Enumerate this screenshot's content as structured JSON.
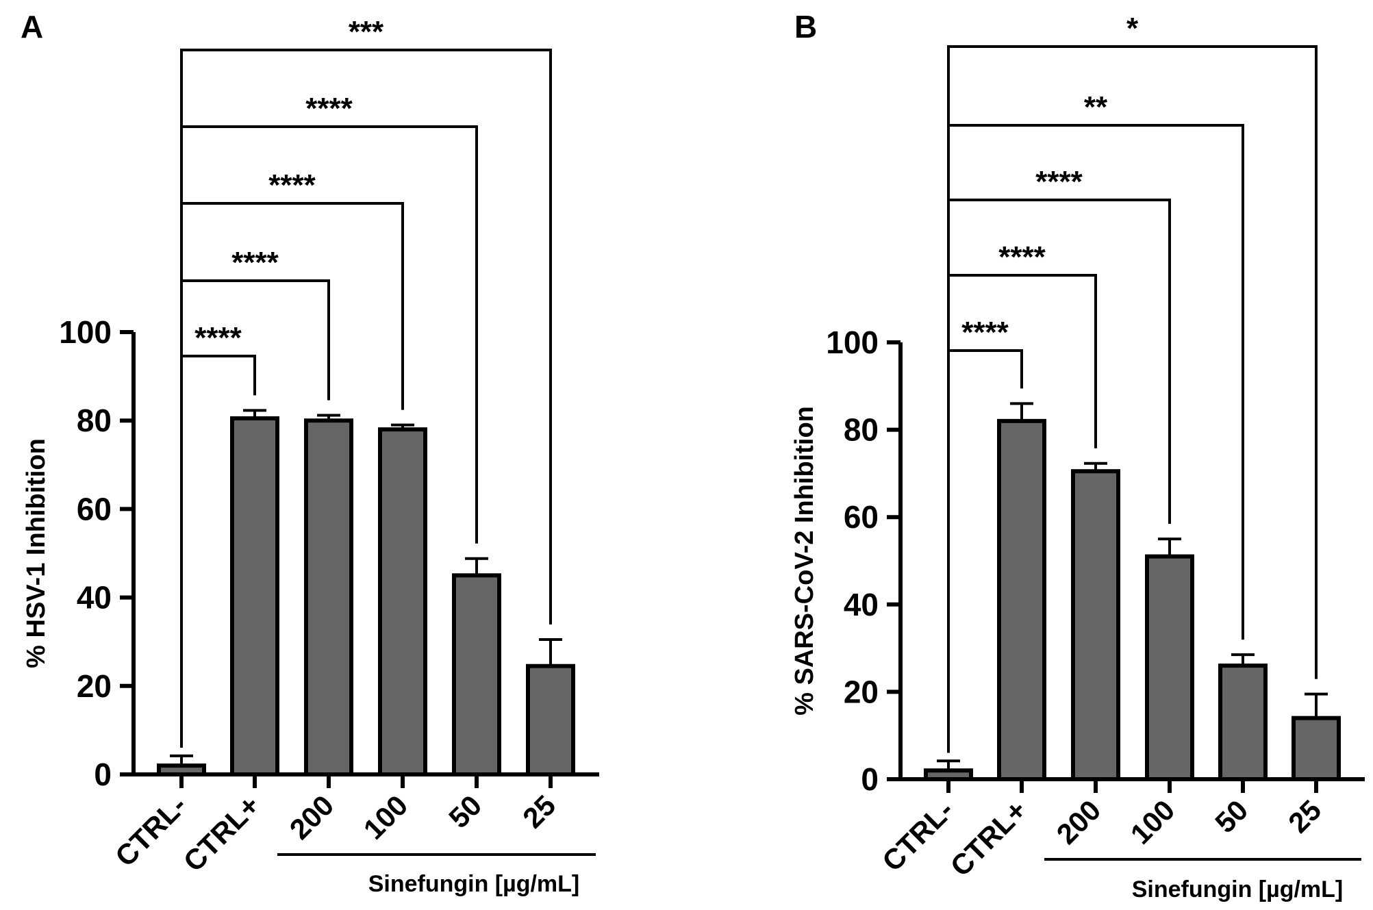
{
  "chart_data": [
    {
      "type": "bar",
      "panel_label": "A",
      "categories": [
        "CTRL-",
        "CTRL+",
        "200",
        "100",
        "50",
        "25"
      ],
      "values": [
        2,
        80.5,
        80,
        78,
        45,
        24.5
      ],
      "errors": [
        2.2,
        1.8,
        1.2,
        1.0,
        3.8,
        6.0
      ],
      "ylabel": "% HSV-1 Inhibition",
      "xlabel": "Sinefungin [µg/mL]",
      "xlabel_group_start": 2,
      "ylim": [
        0,
        100
      ],
      "yticks": [
        0,
        20,
        40,
        60,
        80,
        100
      ],
      "bar_color": "#666666",
      "significance": [
        {
          "from": 0,
          "to": 1,
          "label": "****"
        },
        {
          "from": 0,
          "to": 2,
          "label": "****"
        },
        {
          "from": 0,
          "to": 3,
          "label": "****"
        },
        {
          "from": 0,
          "to": 4,
          "label": "****"
        },
        {
          "from": 0,
          "to": 5,
          "label": "***"
        }
      ]
    },
    {
      "type": "bar",
      "panel_label": "B",
      "categories": [
        "CTRL-",
        "CTRL+",
        "200",
        "100",
        "50",
        "25"
      ],
      "values": [
        2,
        82,
        70.5,
        51,
        26,
        14
      ],
      "errors": [
        2.2,
        4.0,
        1.8,
        4.0,
        2.5,
        5.5
      ],
      "ylabel": "% SARS-CoV-2 Inhibition",
      "xlabel": "Sinefungin [µg/mL]",
      "xlabel_group_start": 2,
      "ylim": [
        0,
        100
      ],
      "yticks": [
        0,
        20,
        40,
        60,
        80,
        100
      ],
      "bar_color": "#666666",
      "significance": [
        {
          "from": 0,
          "to": 1,
          "label": "****"
        },
        {
          "from": 0,
          "to": 2,
          "label": "****"
        },
        {
          "from": 0,
          "to": 3,
          "label": "****"
        },
        {
          "from": 0,
          "to": 4,
          "label": "**"
        },
        {
          "from": 0,
          "to": 5,
          "label": "*"
        }
      ]
    }
  ]
}
